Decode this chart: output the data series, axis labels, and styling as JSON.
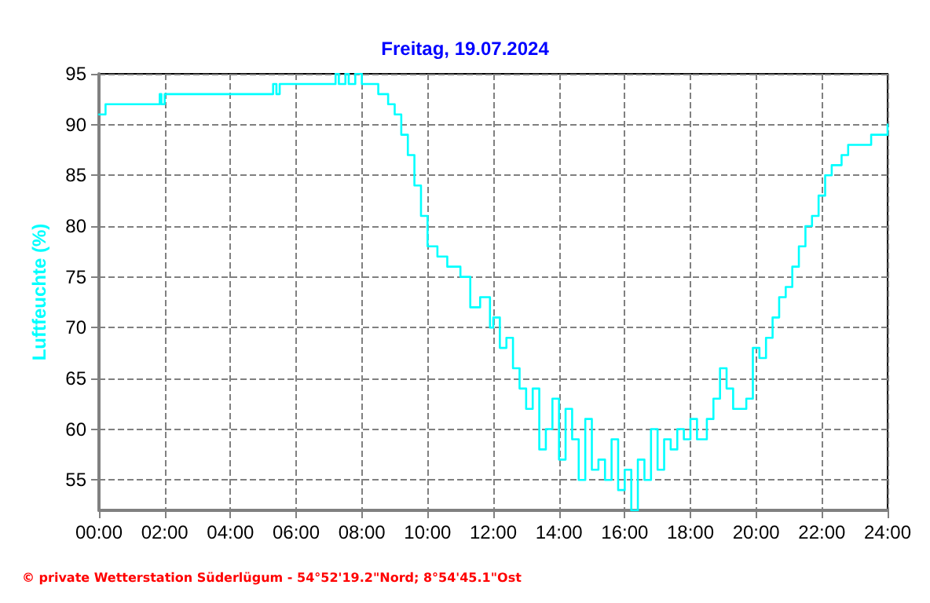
{
  "chart_data": {
    "type": "step",
    "title": "Freitag, 19.07.2024",
    "ylabel": "Luftfeuchte (%)",
    "annotations": [
      "© private Wetterstation Süderlügum - 54°52'19.2\"Nord; 8°54'45.1\"Ost"
    ],
    "x": [
      0,
      0.2,
      1.85,
      1.9,
      2.0,
      5.3,
      5.4,
      5.5,
      7.2,
      7.3,
      7.5,
      7.6,
      7.8,
      8.0,
      8.5,
      8.8,
      9.0,
      9.2,
      9.4,
      9.6,
      9.8,
      10.0,
      10.3,
      10.6,
      11.0,
      11.3,
      11.6,
      11.9,
      12.0,
      12.2,
      12.4,
      12.6,
      12.8,
      13.0,
      13.2,
      13.4,
      13.6,
      13.8,
      14.0,
      14.2,
      14.4,
      14.6,
      14.8,
      15.0,
      15.2,
      15.4,
      15.6,
      15.8,
      16.0,
      16.2,
      16.4,
      16.6,
      16.8,
      17.0,
      17.2,
      17.4,
      17.6,
      17.8,
      18.0,
      18.2,
      18.5,
      18.7,
      18.9,
      19.1,
      19.3,
      19.5,
      19.7,
      19.9,
      20.1,
      20.3,
      20.5,
      20.7,
      20.9,
      21.1,
      21.3,
      21.5,
      21.7,
      21.9,
      22.1,
      22.3,
      22.6,
      22.8,
      23.3,
      23.5,
      23.9,
      24.0
    ],
    "series": [
      {
        "color": "#00ffff",
        "values": [
          91,
          92,
          93,
          92,
          93,
          94,
          93,
          94,
          95,
          94,
          95,
          94,
          95,
          94,
          93,
          92,
          91,
          89,
          87,
          84,
          81,
          78,
          77,
          76,
          75,
          72,
          73,
          70,
          71,
          68,
          69,
          66,
          64,
          62,
          64,
          58,
          60,
          63,
          57,
          62,
          59,
          55,
          61,
          56,
          57,
          55,
          59,
          54,
          56,
          52,
          57,
          55,
          60,
          56,
          59,
          58,
          60,
          59,
          61,
          59,
          61,
          63,
          66,
          64,
          62,
          62,
          63,
          68,
          67,
          69,
          71,
          73,
          74,
          76,
          78,
          80,
          81,
          83,
          85,
          86,
          87,
          88,
          88,
          89,
          89,
          90
        ]
      }
    ],
    "xlim": [
      0,
      24
    ],
    "xticks": [
      {
        "value": 0,
        "label": "00:00"
      },
      {
        "value": 2,
        "label": "02:00"
      },
      {
        "value": 4,
        "label": "04:00"
      },
      {
        "value": 6,
        "label": "06:00"
      },
      {
        "value": 8,
        "label": "08:00"
      },
      {
        "value": 10,
        "label": "10:00"
      },
      {
        "value": 12,
        "label": "12:00"
      },
      {
        "value": 14,
        "label": "14:00"
      },
      {
        "value": 16,
        "label": "16:00"
      },
      {
        "value": 18,
        "label": "18:00"
      },
      {
        "value": 20,
        "label": "20:00"
      },
      {
        "value": 22,
        "label": "22:00"
      },
      {
        "value": 24,
        "label": "24:00"
      }
    ],
    "ylim": [
      52,
      95
    ],
    "yticks": [
      55,
      60,
      65,
      70,
      75,
      80,
      85,
      90,
      95
    ],
    "grid": true,
    "line_style": "solid",
    "marker": "none"
  }
}
